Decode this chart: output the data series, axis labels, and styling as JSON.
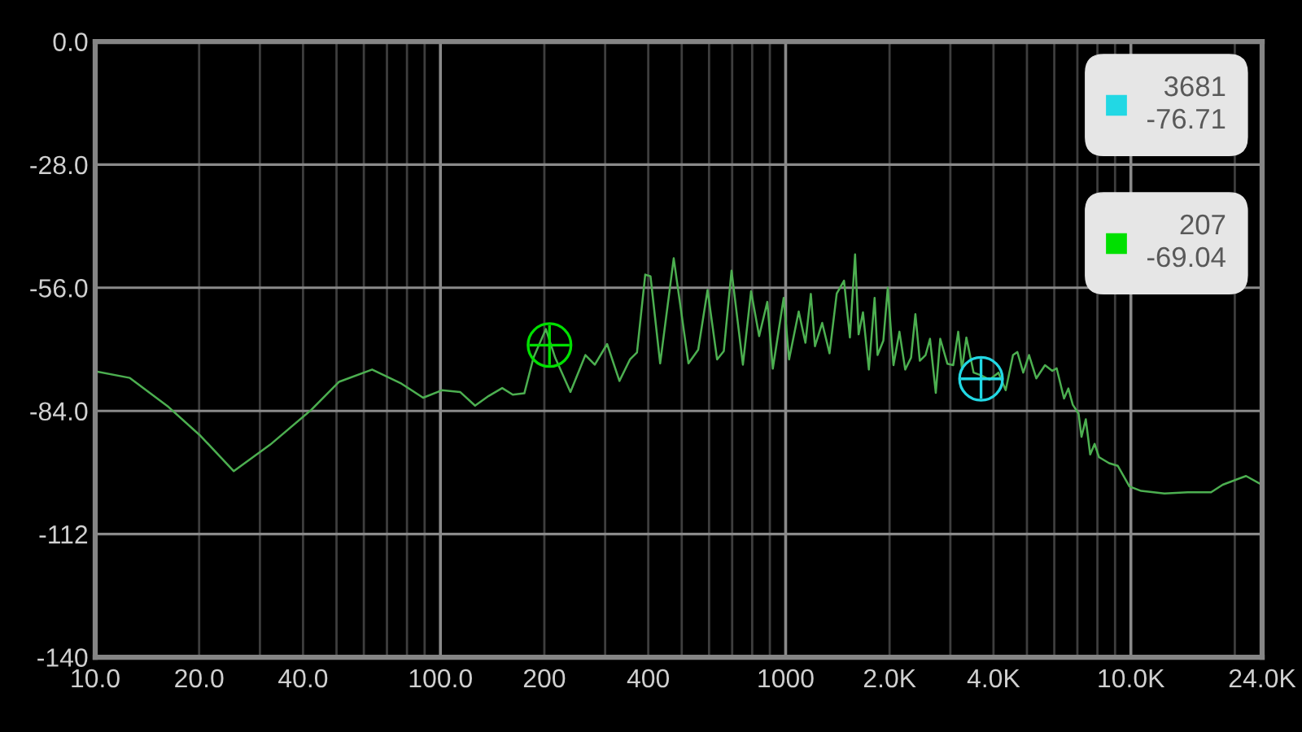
{
  "chart_data": {
    "type": "line",
    "series": [
      {
        "color": "#4caf50",
        "x": [
          10,
          12.6,
          16.3,
          20.2,
          25.2,
          32.1,
          42.2,
          50.8,
          63.4,
          77.1,
          89.1,
          101,
          114,
          126,
          138,
          151,
          162,
          175,
          186,
          202,
          215,
          238,
          263,
          280,
          304,
          330,
          354,
          371,
          392,
          406,
          433,
          474,
          523,
          558,
          594,
          633,
          662,
          697,
          752,
          794,
          838,
          885,
          918,
          987,
          1023,
          1091,
          1141,
          1183,
          1216,
          1276,
          1340,
          1406,
          1476,
          1535,
          1589,
          1627,
          1675,
          1742,
          1810,
          1846,
          1919,
          1976,
          2053,
          2136,
          2220,
          2308,
          2376,
          2447,
          2543,
          2619,
          2722,
          2804,
          2942,
          3058,
          3161,
          3243,
          3338,
          3504,
          3680,
          3899,
          4134,
          4339,
          4557,
          4690,
          4878,
          5070,
          5321,
          5640,
          5922,
          6095,
          6403,
          6590,
          6787,
          7054,
          7194,
          7404,
          7624,
          7852,
          8081,
          8650,
          9168,
          9908,
          10711,
          12513,
          14606,
          17072,
          18450,
          21560,
          23980
        ],
        "values": [
          -75,
          -76.5,
          -83.1,
          -89.7,
          -97.7,
          -91.7,
          -83.8,
          -77.4,
          -74.6,
          -77.8,
          -81.0,
          -79.3,
          -79.7,
          -82.8,
          -80.6,
          -78.8,
          -80.3,
          -80.0,
          -71.9,
          -65.4,
          -71.9,
          -79.7,
          -71.3,
          -73.5,
          -68.8,
          -77.2,
          -72.3,
          -70.7,
          -53.0,
          -53.4,
          -73.2,
          -49.3,
          -73.2,
          -70.1,
          -56.5,
          -72.3,
          -70.4,
          -52.1,
          -73.5,
          -56.8,
          -67.0,
          -59.2,
          -74.4,
          -58.3,
          -72.3,
          -61.4,
          -68.5,
          -57.4,
          -69.3,
          -64.0,
          -70.9,
          -57.3,
          -54.4,
          -67.3,
          -48.4,
          -66.6,
          -61.6,
          -74.6,
          -58.3,
          -71.3,
          -68.0,
          -56.0,
          -73.6,
          -66.0,
          -74.6,
          -71.9,
          -62.0,
          -72.6,
          -71.3,
          -67.6,
          -79.9,
          -67.6,
          -73.3,
          -73.6,
          -66.0,
          -74.6,
          -67.3,
          -75.3,
          -75.9,
          -76.9,
          -75.3,
          -79.3,
          -71.3,
          -70.6,
          -75.3,
          -71.3,
          -76.6,
          -73.6,
          -74.9,
          -74.3,
          -81.2,
          -78.9,
          -82.6,
          -84.6,
          -89.9,
          -85.9,
          -93.9,
          -91.5,
          -94.5,
          -95.9,
          -96.5,
          -101.2,
          -102.2,
          -102.8,
          -102.5,
          -102.5,
          -100.8,
          -98.8,
          -100.8
        ]
      },
      {
        "type": "scatter",
        "name": "3681\n-76.71",
        "color": "#22d8e4",
        "marker": "circle",
        "x": [
          3681
        ],
        "values": [
          -76.71
        ]
      },
      {
        "type": "scatter",
        "name": "207\n-69.04",
        "color": "#00e000",
        "marker": "circle",
        "x": [
          207
        ],
        "values": [
          -69.04
        ]
      }
    ],
    "log": "x",
    "xlim": [
      10,
      24000
    ],
    "ylim": [
      -140,
      0
    ],
    "xticks": [
      {
        "value": 10,
        "label": "10.0"
      },
      {
        "value": 20,
        "label": "20.0"
      },
      {
        "value": 30,
        "label": null
      },
      {
        "value": 40,
        "label": "40.0"
      },
      {
        "value": 50,
        "label": null
      },
      {
        "value": 60,
        "label": null
      },
      {
        "value": 70,
        "label": null
      },
      {
        "value": 80,
        "label": null
      },
      {
        "value": 90,
        "label": null
      },
      {
        "value": 100,
        "label": "100.0"
      },
      200,
      {
        "value": 300,
        "label": null
      },
      400,
      {
        "value": 500,
        "label": null
      },
      {
        "value": 600,
        "label": null
      },
      {
        "value": 700,
        "label": null
      },
      {
        "value": 800,
        "label": null
      },
      {
        "value": 900,
        "label": null
      },
      1000,
      {
        "value": 2000,
        "label": "2.0K"
      },
      {
        "value": 3000,
        "label": null
      },
      {
        "value": 4000,
        "label": "4.0K"
      },
      {
        "value": 5000,
        "label": null
      },
      {
        "value": 6000,
        "label": null
      },
      {
        "value": 7000,
        "label": null
      },
      {
        "value": 8000,
        "label": null
      },
      {
        "value": 9000,
        "label": null
      },
      {
        "value": 10000,
        "label": "10.0K"
      },
      {
        "value": 20000,
        "label": null
      },
      {
        "value": 24000,
        "label": "24.0K"
      }
    ],
    "yticks": [
      {
        "value": 0,
        "label": "0.0"
      },
      {
        "value": -28,
        "label": "-28.0"
      },
      {
        "value": -56,
        "label": "-56.0"
      },
      {
        "value": -84,
        "label": "-84.0"
      },
      -112,
      -140
    ],
    "grid": true,
    "legend": "top right"
  }
}
